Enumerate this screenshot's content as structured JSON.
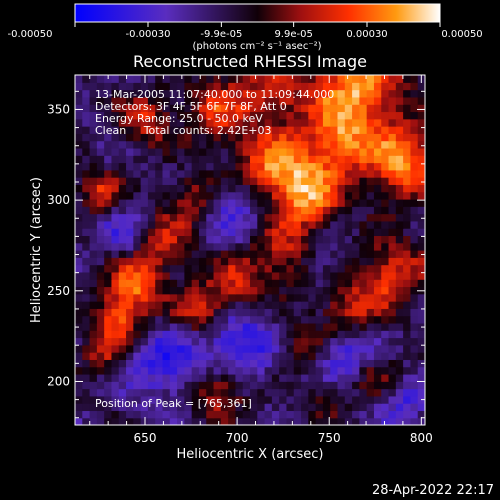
{
  "chart_data": {
    "type": "heatmap",
    "title": "Reconstructed RHESSI Image",
    "xlabel": "Heliocentric X (arcsec)",
    "ylabel": "Heliocentric Y (arcsec)",
    "xlim": [
      612,
      802
    ],
    "ylim": [
      176,
      369
    ],
    "x_ticks": [
      650,
      700,
      750,
      800
    ],
    "y_ticks": [
      200,
      250,
      300,
      350
    ],
    "grid": false,
    "colorbar": {
      "range": [
        -0.0005,
        0.0005
      ],
      "tick_values": [
        -0.0005,
        -0.0003,
        -9.9e-05,
        9.9e-05,
        0.0003,
        0.0005
      ],
      "tick_labels": [
        "-0.00050",
        "-0.00030",
        "-9.9e-05",
        "9.9e-05",
        "0.00030",
        "0.00050"
      ],
      "unit_label": "(photons cm⁻² s⁻¹ asec⁻²)"
    },
    "annotations": [
      "13-Mar-2005 11:07:40.000 to 11:09:44.000",
      "Detectors: 3F 4F 5F 6F 7F 8F, Att 0",
      "Energy Range: 25.0 - 50.0 keV",
      "Clean     Total counts: 2.42E+03"
    ],
    "peak_label": "Position of Peak = [765,361]",
    "peak_position": [
      765,
      361
    ],
    "peak_value": 0.0005,
    "heatmap": {
      "x_range": [
        612,
        802
      ],
      "y_range": [
        176,
        369
      ],
      "cols": 48,
      "rows": 48,
      "value_range": [
        -0.0005,
        0.0005
      ],
      "blobs": [
        [
          765,
          361,
          0.0005,
          18
        ],
        [
          722,
          318,
          0.00048,
          14
        ],
        [
          740,
          300,
          0.0004,
          12
        ],
        [
          755,
          330,
          0.00038,
          12
        ],
        [
          790,
          320,
          0.00045,
          14
        ],
        [
          785,
          260,
          0.00035,
          13
        ],
        [
          760,
          240,
          0.0003,
          12
        ],
        [
          725,
          270,
          0.0003,
          12
        ],
        [
          700,
          255,
          0.00028,
          10
        ],
        [
          680,
          240,
          0.00036,
          10
        ],
        [
          645,
          255,
          0.00042,
          10
        ],
        [
          635,
          235,
          0.00038,
          10
        ],
        [
          660,
          275,
          0.0003,
          10
        ],
        [
          675,
          300,
          0.00025,
          10
        ],
        [
          625,
          305,
          0.0003,
          8
        ],
        [
          650,
          345,
          0.0003,
          10
        ],
        [
          690,
          350,
          0.0003,
          14
        ],
        [
          720,
          360,
          0.00028,
          12
        ],
        [
          625,
          215,
          0.00022,
          8
        ],
        [
          690,
          195,
          0.00035,
          10
        ],
        [
          735,
          220,
          0.0002,
          10
        ],
        [
          775,
          205,
          0.00025,
          10
        ],
        [
          750,
          190,
          0.00018,
          8
        ],
        [
          662,
          210,
          -0.00025,
          14
        ],
        [
          700,
          295,
          -0.0002,
          12
        ],
        [
          700,
          220,
          -0.0003,
          14
        ],
        [
          760,
          215,
          -0.0003,
          12
        ],
        [
          640,
          280,
          -0.00018,
          10
        ],
        [
          745,
          265,
          -0.00015,
          10
        ],
        [
          790,
          190,
          -0.0002,
          10
        ]
      ]
    }
  },
  "timestamp": "28-Apr-2022 22:17"
}
